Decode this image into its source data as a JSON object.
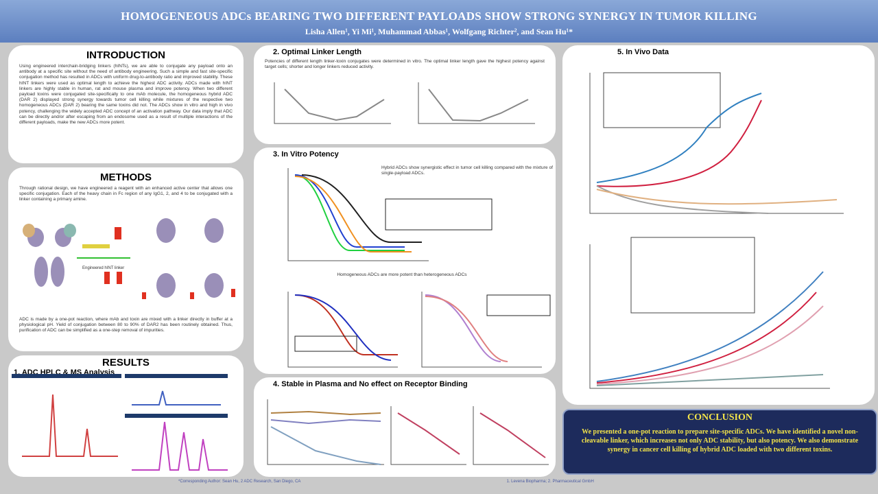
{
  "header": {
    "title": "HOMOGENEOUS ADCs BEARING TWO DIFFERENT PAYLOADS SHOW STRONG SYNERGY IN TUMOR KILLING",
    "authors": "Lisha Allen¹, Yi Mi¹, Muhammad Abbas¹, Wolfgang Richter², and Sean Hu¹*"
  },
  "introduction": {
    "title": "INTRODUCTION",
    "text": "Using engineered interchain-bridging linkers (hINTs), we are able to conjugate any payload onto an antibody at a specific site without the need of antibody engineering. Such a simple and fast site-specific conjugation method has resulted in ADCs with uniform drug-to-antibody ratio and improved stability. These hINT linkers were used as optimal length to achieve the highest ADC activity. ADCs made with hINT linkers are highly stable in human, rat and mouse plasma and improve potency. When two different payload toxins were conjugated site-specifically to one mAb molecule, the homogeneous hybrid ADC (DAR 2) displayed strong synergy towards tumor cell killing while mixtures of the respective two homogeneous ADCs (DAR 2) bearing the same toxins did not. The ADCs show in vitro and high in vivo potency, challenging the widely accepted ADC concept of an activation pathway. Our data imply that ADC can be directly and/or after escaping from an endosome used as a result of multiple interactions of the different payloads, make the new ADCs more potent."
  },
  "methods": {
    "title": "METHODS",
    "text": "Through rational design, we have engineered a reagent with an enhanced active center that allows one specific conjugation. Each of the heavy chain in Fc region of any IgG1, 2, and 4 to be conjugated with a linker containing a primary amine.",
    "linker_label": "Engineered hINT linker",
    "text2": "ADC is made by a one-pot reaction, where mAb and toxin are mixed with a linker directly in buffer at a physiological pH. Yield of conjugation between 80 to 90% of DAR2 has been routinely obtained. Thus, purification of ADC can be simplified as a one-step removal of impurities."
  },
  "results": {
    "title": "RESULTS",
    "section1": "1. ADC HPLC & MS Analysis"
  },
  "section2": {
    "title": "2. Optimal Linker Length",
    "text": "Potencies of different length linker-toxin conjugates were determined in vitro. The optimal linker length gave the highest potency against target cells; shorter and longer linkers reduced activity."
  },
  "section3": {
    "title": "3. In Vitro Potency",
    "text": "Hybrid ADCs show synergistic effect in tumor cell killing compared with the mixture of single-payload ADCs.",
    "subtitle": "Homogeneous ADCs are more potent than heterogeneous ADCs"
  },
  "section4": {
    "title": "4. Stable in Plasma and No effect on Receptor Binding"
  },
  "section5": {
    "title": "5. In Vivo Data"
  },
  "conclusion": {
    "title": "CONCLUSION",
    "text": "We presented a one-pot reaction to prepare site-specific ADCs. We have identified a novel non-cleavable linker, which increases not only ADC stability, but also potency. We also demonstrate synergy in cancer cell killing of hybrid ADC loaded with two different toxins."
  },
  "footer": {
    "text": "*Corresponding Author: Sean Hu, 2 ADC Research, San Diego, CA",
    "affiliation": "1. Levena Biopharma; 2. Pharmaceutical GmbH"
  }
}
